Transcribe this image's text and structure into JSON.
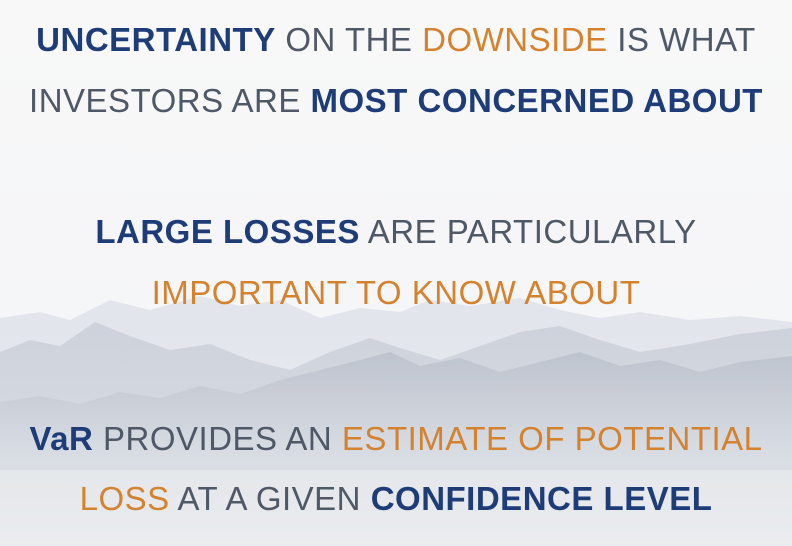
{
  "slide": {
    "line1": {
      "a": "UNCERTAINTY",
      "b": " ON THE ",
      "c": "DOWNSIDE",
      "d": " IS WHAT"
    },
    "line2": {
      "a": "INVESTORS ARE ",
      "b": "MOST CONCERNED ABOUT"
    },
    "line3": {
      "a": "LARGE LOSSES",
      "b": " ARE PARTICULARLY"
    },
    "line4": {
      "a": "IMPORTANT TO KNOW ABOUT"
    },
    "line5": {
      "a": "VaR",
      "b": " PROVIDES AN ",
      "c": "ESTIMATE OF POTENTIAL"
    },
    "line6": {
      "a": "LOSS",
      "b": " AT A GIVEN ",
      "c": "CONFIDENCE LEVEL"
    }
  },
  "colors": {
    "navy": "#1d3c78",
    "gray": "#4f5866",
    "orange": "#d4822e",
    "background": "#f7f7f8"
  }
}
